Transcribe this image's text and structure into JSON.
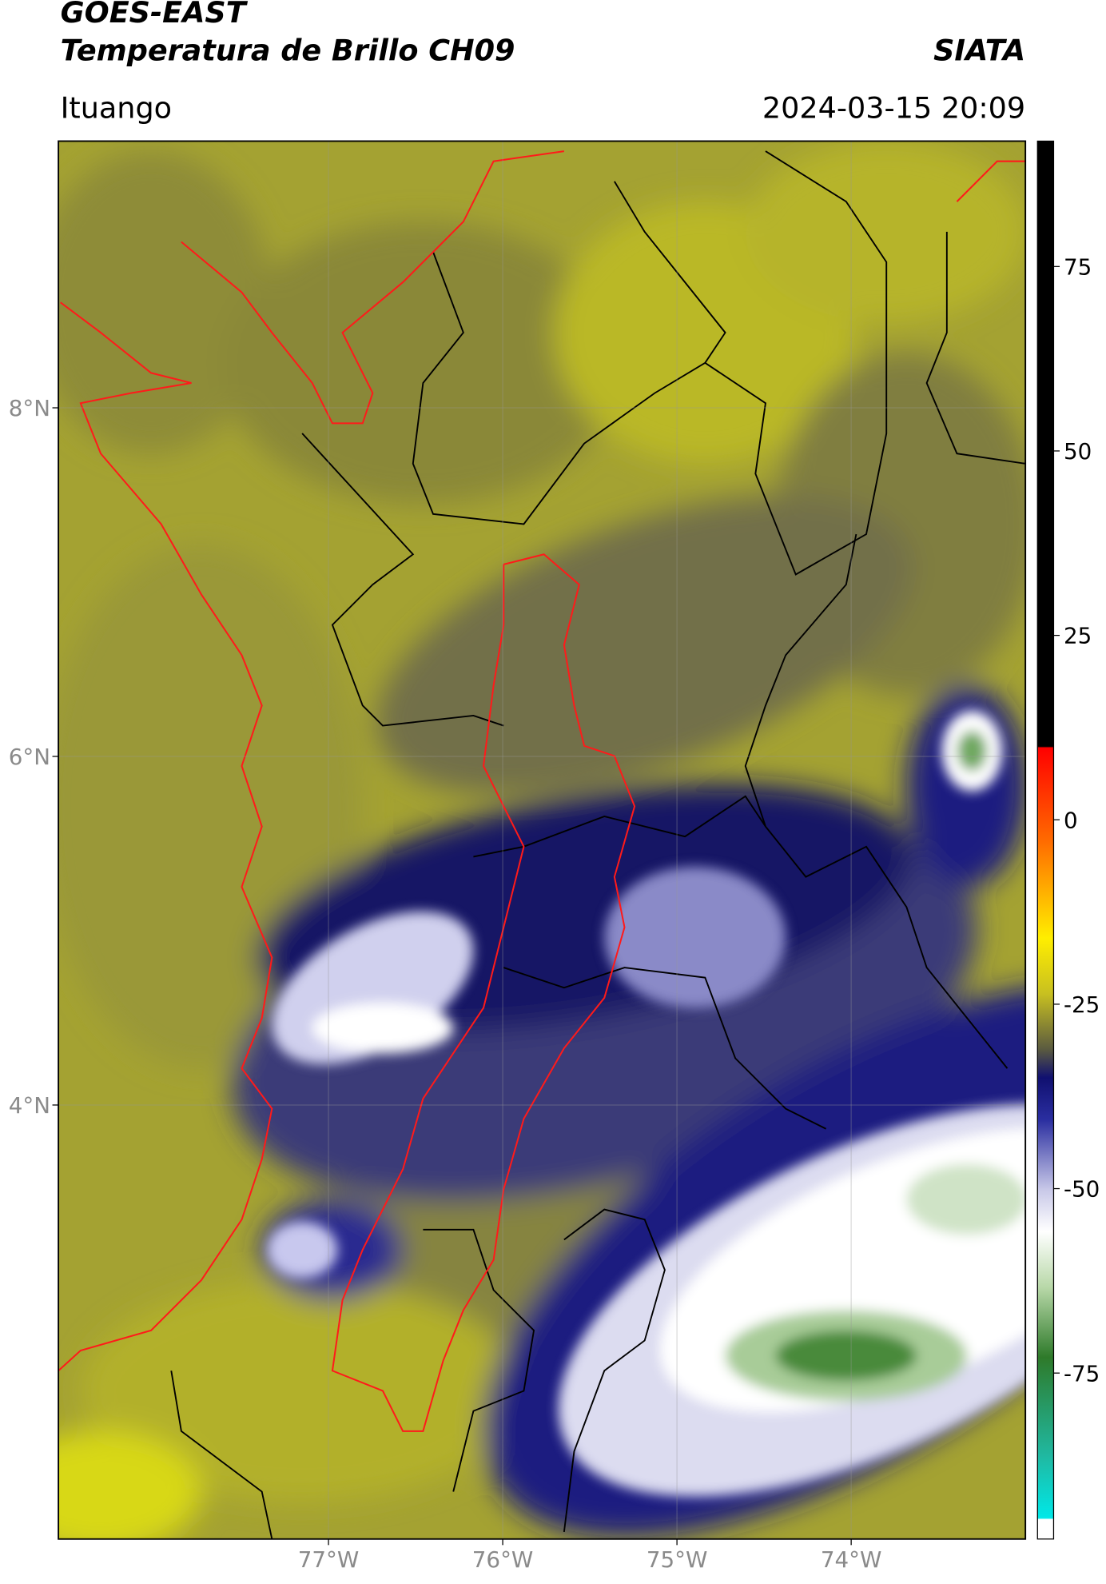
{
  "header": {
    "title": "GOES-EAST",
    "subtitle": "Temperatura de Brillo CH09",
    "brand": "SIATA",
    "location": "Ituango",
    "datetime": "2024-03-15 20:09"
  },
  "map": {
    "lonlim": [
      -78.55,
      -73.0
    ],
    "latlim": [
      1.51,
      9.53
    ],
    "lon_ticks": [
      {
        "value": -77,
        "label": "77°W"
      },
      {
        "value": -76,
        "label": "76°W"
      },
      {
        "value": -75,
        "label": "75°W"
      },
      {
        "value": -74,
        "label": "74°W"
      }
    ],
    "lat_ticks": [
      {
        "value": 8,
        "label": "8°N"
      },
      {
        "value": 6,
        "label": "6°N"
      },
      {
        "value": 4,
        "label": "4°N"
      }
    ],
    "grid": true
  },
  "colorbar": {
    "lim": [
      -97.5,
      92
    ],
    "ticks": [
      75,
      50,
      25,
      0,
      -25,
      -50,
      -75
    ]
  }
}
